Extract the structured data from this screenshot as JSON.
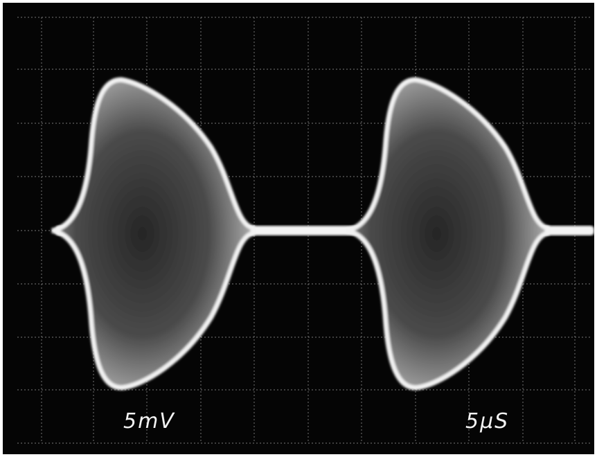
{
  "labels": {
    "vertical_scale": "5mV",
    "time_scale": "5μS"
  }
}
